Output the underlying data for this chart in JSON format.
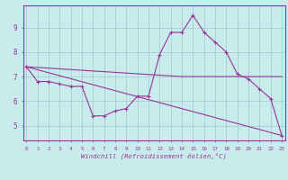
{
  "title": "",
  "xlabel": "Windchill (Refroidissement éolien,°C)",
  "ylabel": "",
  "bg_color": "#c8ecec",
  "grid_color": "#a0c8d0",
  "line_color": "#993399",
  "x_ticks": [
    0,
    1,
    2,
    3,
    4,
    5,
    6,
    7,
    8,
    9,
    10,
    11,
    12,
    13,
    14,
    15,
    16,
    17,
    18,
    19,
    20,
    21,
    22,
    23
  ],
  "yticks": [
    5,
    6,
    7,
    8,
    9
  ],
  "ylim": [
    4.4,
    9.9
  ],
  "xlim": [
    -0.3,
    23.3
  ],
  "line1_x": [
    0,
    1,
    2,
    3,
    4,
    5,
    6,
    7,
    8,
    9,
    10,
    11,
    12,
    13,
    14,
    15,
    16,
    17,
    18,
    19,
    20,
    21,
    22,
    23
  ],
  "line1_y": [
    7.4,
    6.8,
    6.8,
    6.7,
    6.6,
    6.6,
    5.4,
    5.4,
    5.6,
    5.7,
    6.2,
    6.2,
    7.9,
    8.8,
    8.8,
    9.5,
    8.8,
    8.4,
    8.0,
    7.1,
    6.9,
    6.5,
    6.1,
    4.6
  ],
  "line3_x": [
    0,
    14,
    23
  ],
  "line3_y": [
    7.4,
    7.0,
    7.0
  ],
  "line4_x": [
    0,
    23
  ],
  "line4_y": [
    7.4,
    4.6
  ]
}
